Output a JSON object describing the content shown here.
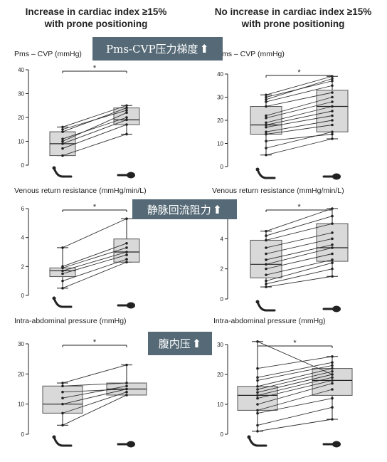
{
  "headers": {
    "left": [
      "Increase in cardiac index ≥15%",
      "with prone positioning"
    ],
    "right": [
      "No increase in cardiac index ≥15%",
      "with prone positioning"
    ]
  },
  "banners": [
    {
      "text": "Pms-CVP压力梯度",
      "arrow": "⬆"
    },
    {
      "text": "静脉回流阻力",
      "arrow": "⬆"
    },
    {
      "text": "腹内压",
      "arrow": "⬆"
    }
  ],
  "panel_titles": {
    "pms_left": "Pms – CVP (mmHg)",
    "pms_right": "ms – CVP (mmHg)",
    "vrr_left": "Venous return resistance (mmHg/min/L)",
    "vrr_right": "Venous return resistance (mmHg/min/L)",
    "iap_left": "Intra-abdominal pressure (mmHg)",
    "iap_right": "Intra-abdominal pressure (mmHg)"
  },
  "colors": {
    "box": "#d9d9d9",
    "banner": "#556a76",
    "line": "#222222"
  },
  "icons": [
    "supine-position-icon",
    "prone-position-icon"
  ],
  "chart_data": [
    {
      "type": "box",
      "id": "pms_left",
      "ylim": [
        0,
        40
      ],
      "yticks": [
        0,
        10,
        20,
        30,
        40
      ],
      "significance": "*",
      "boxes": [
        {
          "min": 4,
          "q1": 4,
          "median": 9,
          "q3": 14,
          "max": 16
        },
        {
          "min": 13,
          "q1": 17,
          "median": 19,
          "q3": 24,
          "max": 25
        }
      ],
      "pairs": [
        [
          4,
          13
        ],
        [
          7,
          17
        ],
        [
          9,
          19
        ],
        [
          10,
          22
        ],
        [
          11,
          20
        ],
        [
          14,
          24
        ],
        [
          16,
          25
        ],
        [
          15,
          23
        ]
      ]
    },
    {
      "type": "box",
      "id": "pms_right",
      "ylim": [
        0,
        40
      ],
      "yticks": [
        0,
        10,
        20,
        30,
        40
      ],
      "significance": "*",
      "boxes": [
        {
          "min": 5,
          "q1": 14,
          "median": 18,
          "q3": 26,
          "max": 31
        },
        {
          "min": 12,
          "q1": 15,
          "median": 26,
          "q3": 33,
          "max": 39
        }
      ],
      "pairs": [
        [
          5,
          12
        ],
        [
          8,
          15
        ],
        [
          11,
          14
        ],
        [
          14,
          18
        ],
        [
          15,
          20
        ],
        [
          17,
          22
        ],
        [
          18,
          24
        ],
        [
          19,
          26
        ],
        [
          21,
          28
        ],
        [
          22,
          30
        ],
        [
          26,
          32
        ],
        [
          28,
          35
        ],
        [
          30,
          37
        ],
        [
          31,
          39
        ],
        [
          29,
          38
        ]
      ]
    },
    {
      "type": "box",
      "id": "vrr_left",
      "ylim": [
        0,
        6
      ],
      "yticks": [
        0,
        2,
        4,
        6
      ],
      "significance": "*",
      "boxes": [
        {
          "min": 0.5,
          "q1": 1.3,
          "median": 1.7,
          "q3": 1.9,
          "max": 3.3
        },
        {
          "min": 2.3,
          "q1": 2.3,
          "median": 3.0,
          "q3": 3.9,
          "max": 5.3
        }
      ],
      "pairs": [
        [
          0.5,
          2.3
        ],
        [
          1.0,
          2.5
        ],
        [
          1.5,
          2.8
        ],
        [
          1.7,
          3.0
        ],
        [
          1.9,
          3.3
        ],
        [
          2.0,
          3.6
        ],
        [
          3.3,
          5.3
        ]
      ]
    },
    {
      "type": "box",
      "id": "vrr_right",
      "ylim": [
        0,
        6
      ],
      "yticks": [
        0,
        2,
        4,
        6
      ],
      "significance": "*",
      "boxes": [
        {
          "min": 0.8,
          "q1": 1.4,
          "median": 2.3,
          "q3": 3.9,
          "max": 4.5
        },
        {
          "min": 1.5,
          "q1": 2.5,
          "median": 3.4,
          "q3": 5.0,
          "max": 6.0
        }
      ],
      "pairs": [
        [
          0.8,
          1.5
        ],
        [
          1.0,
          2.0
        ],
        [
          1.2,
          2.4
        ],
        [
          1.6,
          2.6
        ],
        [
          2.0,
          3.0
        ],
        [
          2.3,
          3.4
        ],
        [
          2.6,
          3.6
        ],
        [
          3.0,
          4.0
        ],
        [
          3.4,
          4.4
        ],
        [
          3.9,
          5.0
        ],
        [
          4.2,
          5.5
        ],
        [
          4.5,
          6.0
        ]
      ]
    },
    {
      "type": "box",
      "id": "iap_left",
      "ylim": [
        0,
        30
      ],
      "yticks": [
        0,
        10,
        20,
        30
      ],
      "significance": "*",
      "boxes": [
        {
          "min": 3,
          "q1": 7,
          "median": 10,
          "q3": 16,
          "max": 17
        },
        {
          "min": 13,
          "q1": 13,
          "median": 15,
          "q3": 17,
          "max": 23
        }
      ],
      "pairs": [
        [
          3,
          13
        ],
        [
          7,
          14
        ],
        [
          10,
          15
        ],
        [
          12,
          16
        ],
        [
          14,
          15
        ],
        [
          16,
          17
        ],
        [
          17,
          23
        ]
      ]
    },
    {
      "type": "box",
      "id": "iap_right",
      "ylim": [
        0,
        30
      ],
      "yticks": [
        0,
        10,
        20,
        30
      ],
      "significance": "*",
      "boxes": [
        {
          "min": 1,
          "q1": 8,
          "median": 13,
          "q3": 16,
          "max": 31
        },
        {
          "min": 5,
          "q1": 13,
          "median": 18,
          "q3": 22,
          "max": 26
        }
      ],
      "pairs": [
        [
          1,
          5
        ],
        [
          3,
          9
        ],
        [
          7,
          12
        ],
        [
          8,
          15
        ],
        [
          10,
          17
        ],
        [
          12,
          18
        ],
        [
          13,
          19
        ],
        [
          14,
          20
        ],
        [
          15,
          21
        ],
        [
          16,
          22
        ],
        [
          18,
          23
        ],
        [
          19,
          24
        ],
        [
          22,
          26
        ],
        [
          31,
          20
        ]
      ]
    }
  ]
}
